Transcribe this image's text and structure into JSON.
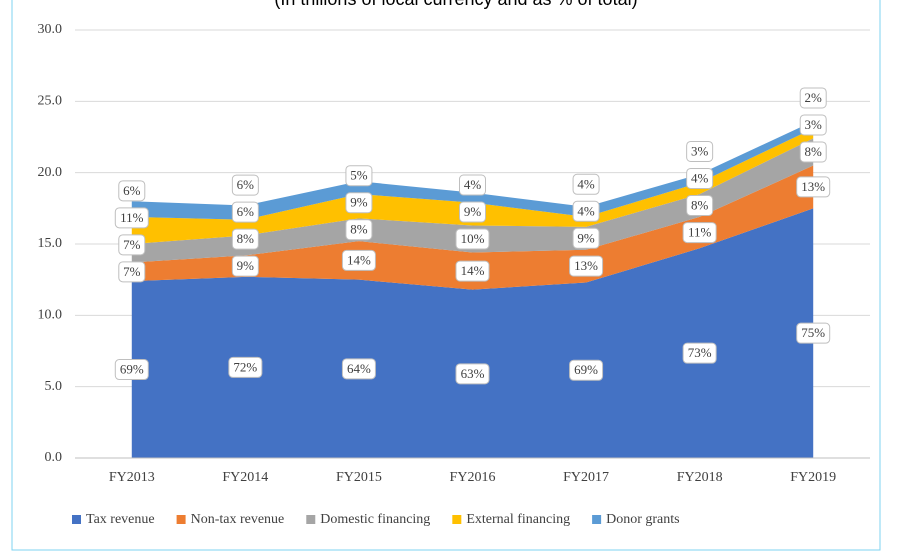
{
  "chart_data": {
    "type": "stacked_area",
    "title": "(In trillions of local currency and as % of total)",
    "categories": [
      "FY2013",
      "FY2014",
      "FY2015",
      "FY2016",
      "FY2017",
      "FY2018",
      "FY2019"
    ],
    "series": [
      {
        "name": "Tax revenue",
        "color": "#4472c4",
        "values": [
          12.4,
          12.7,
          12.5,
          11.8,
          12.3,
          14.7,
          17.5
        ],
        "labels": [
          "69%",
          "72%",
          "64%",
          "63%",
          "69%",
          "73%",
          "75%"
        ]
      },
      {
        "name": "Non-tax revenue",
        "color": "#ed7d31",
        "values": [
          1.3,
          1.5,
          2.7,
          2.6,
          2.3,
          2.2,
          3.0
        ],
        "labels": [
          "7%",
          "9%",
          "14%",
          "14%",
          "13%",
          "11%",
          "13%"
        ]
      },
      {
        "name": "Domestic financing",
        "color": "#a5a5a5",
        "values": [
          1.3,
          1.4,
          1.6,
          1.9,
          1.6,
          1.6,
          1.9
        ],
        "labels": [
          "7%",
          "8%",
          "8%",
          "10%",
          "9%",
          "8%",
          "8%"
        ]
      },
      {
        "name": "External financing",
        "color": "#ffc000",
        "values": [
          1.9,
          1.1,
          1.7,
          1.6,
          0.7,
          0.8,
          0.7
        ],
        "labels": [
          "11%",
          "6%",
          "9%",
          "9%",
          "4%",
          "4%",
          "3%"
        ]
      },
      {
        "name": "Donor grants",
        "color": "#5b9bd5",
        "values": [
          1.1,
          1.0,
          0.9,
          0.7,
          0.7,
          0.6,
          0.5
        ],
        "labels": [
          "6%",
          "6%",
          "5%",
          "4%",
          "4%",
          "3%",
          "2%"
        ]
      }
    ],
    "ylim": [
      0,
      30
    ],
    "yticks": [
      {
        "value": 0,
        "label": "0.0"
      },
      {
        "value": 5,
        "label": "5.0"
      },
      {
        "value": 10,
        "label": "10.0"
      },
      {
        "value": 15,
        "label": "15.0"
      },
      {
        "value": 20,
        "label": "20.0"
      },
      {
        "value": 25,
        "label": "25.0"
      },
      {
        "value": 30,
        "label": "30.0"
      }
    ],
    "grid": true,
    "legend": "bottom"
  }
}
